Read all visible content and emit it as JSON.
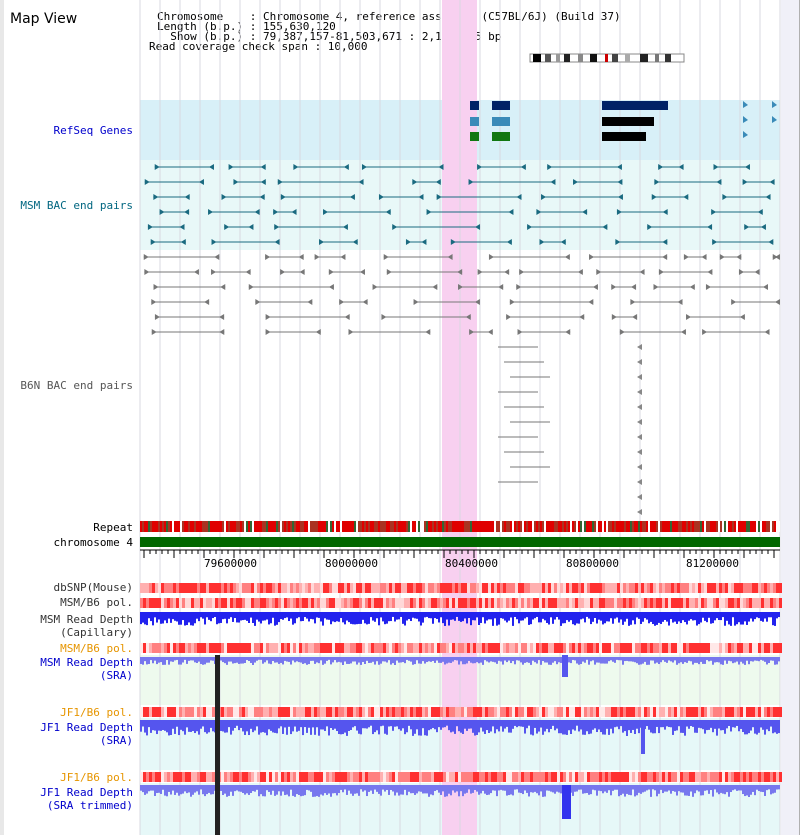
{
  "header": {
    "title": "Map View",
    "lines": [
      "Chromosome    : Chromosome 4, reference assembly (C57BL/6J) (Build 37)",
      "Length (b.p.) : 155,630,120",
      "  Show (b.p.) : 79,387,157-81,503,671 : 2,116,515 bp",
      "Read coverage check span : 10,000"
    ]
  },
  "tracks": {
    "refseq": {
      "label": "RefSeq Genes",
      "color": "#0000cc"
    },
    "msm_bac": {
      "label": "MSM BAC end pairs",
      "color": "#006680"
    },
    "b6n_bac": {
      "label": "B6N BAC end pairs",
      "color": "#555555"
    },
    "repeat": {
      "label": "Repeat",
      "color": "#000000"
    },
    "chromosome": {
      "label": "chromosome 4",
      "color": "#000000"
    },
    "dbsnp": {
      "label": "dbSNP(Mouse)",
      "color": "#333333"
    },
    "msm_b6_pol1": {
      "label": "MSM/B6 pol.",
      "color": "#333333"
    },
    "msm_depth_cap": {
      "label1": "MSM Read Depth",
      "label2": "(Capillary)",
      "color": "#333333"
    },
    "msm_b6_pol2": {
      "label": "MSM/B6 pol.",
      "color": "#e69500"
    },
    "msm_depth_sra": {
      "label1": "MSM Read Depth",
      "label2": "(SRA)",
      "color": "#0000cc"
    },
    "jf1_b6_pol1": {
      "label": "JF1/B6 pol.",
      "color": "#e69500"
    },
    "jf1_depth_sra": {
      "label1": "JF1 Read Depth",
      "label2": "(SRA)",
      "color": "#0000cc"
    },
    "jf1_b6_pol2": {
      "label": "JF1/B6 pol.",
      "color": "#e69500"
    },
    "jf1_depth_trim": {
      "label1": "JF1 Read Depth",
      "label2": "(SRA trimmed)",
      "color": "#0000cc"
    }
  },
  "axis": {
    "ticks": [
      "79600000",
      "80000000",
      "80400000",
      "80800000",
      "81200000"
    ]
  },
  "colors": {
    "highlight": "#f8d0f0",
    "refseq_bg": "#d8f0f8",
    "msm_bg": "#e8f8f8",
    "msm_sra_bg": "#eefaee",
    "jf1_bg": "#e6f8f8",
    "chrom": "#006600"
  }
}
